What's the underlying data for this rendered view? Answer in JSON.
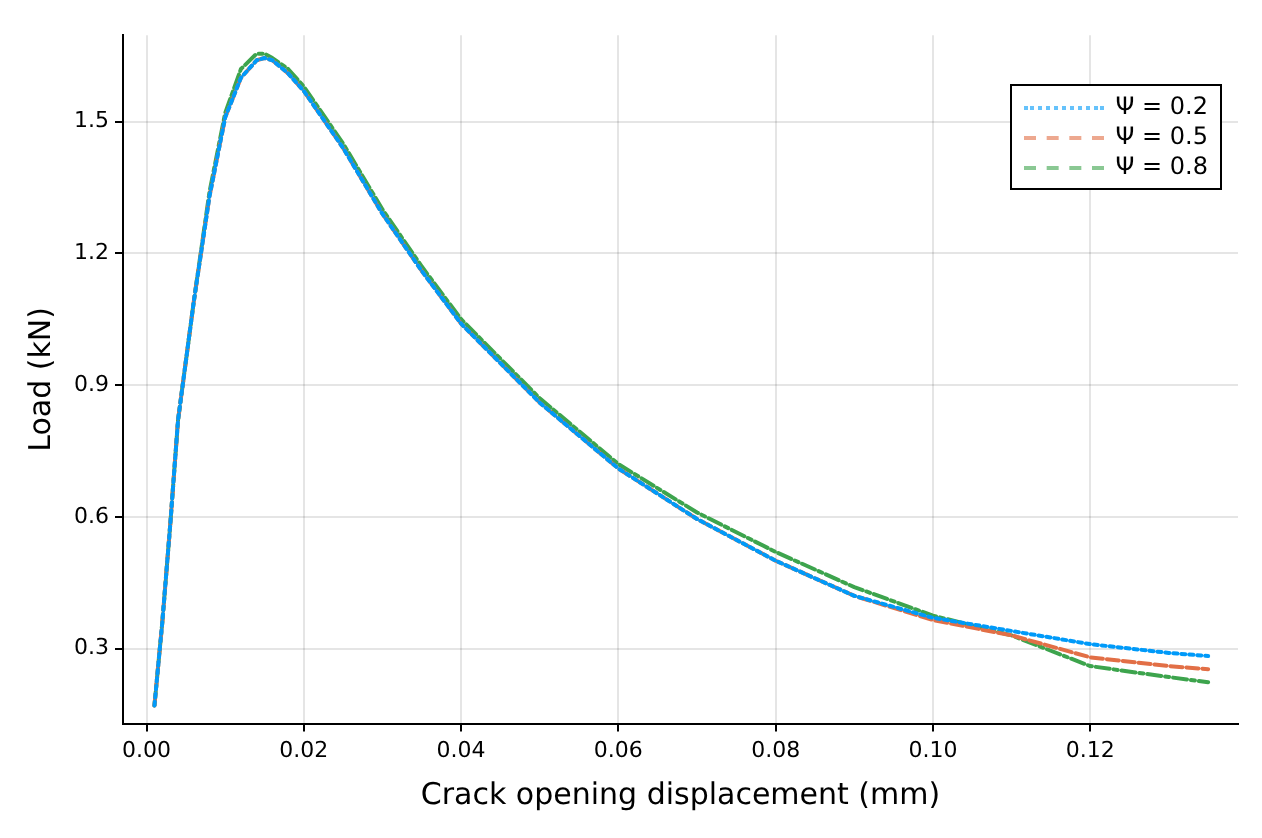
{
  "chart_data": {
    "type": "line",
    "xlabel": "Crack opening displacement (mm)",
    "ylabel": "Load (kN)",
    "x": [
      0.001,
      0.002,
      0.003,
      0.004,
      0.006,
      0.008,
      0.01,
      0.012,
      0.014,
      0.015,
      0.016,
      0.018,
      0.02,
      0.025,
      0.03,
      0.035,
      0.04,
      0.05,
      0.06,
      0.07,
      0.08,
      0.09,
      0.1,
      0.11,
      0.12,
      0.13,
      0.135
    ],
    "series": [
      {
        "name": "Ψ = 0.2",
        "color": "#009af9",
        "line_style": "dotted",
        "values": [
          0.17,
          0.36,
          0.58,
          0.82,
          1.09,
          1.33,
          1.51,
          1.6,
          1.64,
          1.645,
          1.64,
          1.61,
          1.57,
          1.44,
          1.29,
          1.16,
          1.04,
          0.86,
          0.71,
          0.595,
          0.5,
          0.42,
          0.37,
          0.34,
          0.31,
          0.29,
          0.283
        ]
      },
      {
        "name": "Ψ = 0.5",
        "color": "#e26f46",
        "line_style": "dashed",
        "values": [
          0.17,
          0.36,
          0.58,
          0.82,
          1.09,
          1.33,
          1.51,
          1.6,
          1.64,
          1.645,
          1.64,
          1.61,
          1.57,
          1.44,
          1.29,
          1.16,
          1.04,
          0.86,
          0.71,
          0.595,
          0.5,
          0.42,
          0.365,
          0.33,
          0.28,
          0.26,
          0.253
        ]
      },
      {
        "name": "Ψ = 0.8",
        "color": "#3da44d",
        "line_style": "dashdot",
        "values": [
          0.17,
          0.36,
          0.58,
          0.82,
          1.09,
          1.34,
          1.52,
          1.62,
          1.655,
          1.655,
          1.645,
          1.62,
          1.58,
          1.45,
          1.3,
          1.17,
          1.05,
          0.87,
          0.72,
          0.61,
          0.52,
          0.44,
          0.375,
          0.33,
          0.26,
          0.235,
          0.223
        ]
      }
    ],
    "xlim": [
      -0.003,
      0.1388
    ],
    "xticks": [
      {
        "value": 0,
        "label": "0.00"
      },
      {
        "value": 0.02,
        "label": "0.02"
      },
      {
        "value": 0.04,
        "label": "0.04"
      },
      {
        "value": 0.06,
        "label": "0.06"
      },
      {
        "value": 0.08,
        "label": "0.08"
      },
      {
        "value": 0.1,
        "label": "0.10"
      },
      {
        "value": 0.12,
        "label": "0.12"
      }
    ],
    "ylim": [
      0.129,
      1.697
    ],
    "yticks": [
      0.3,
      0.6,
      0.9,
      1.2,
      1.5
    ],
    "grid": true,
    "legend": "top right",
    "marker": "none"
  }
}
